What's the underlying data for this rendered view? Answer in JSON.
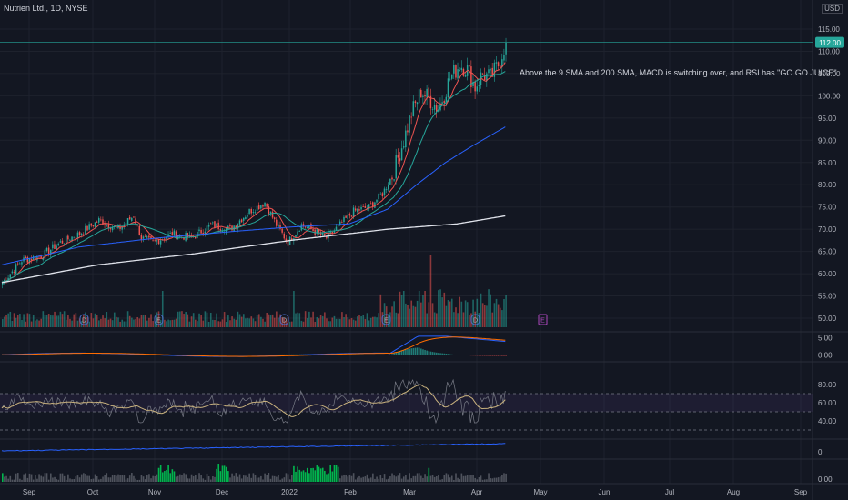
{
  "header": {
    "title": "Nutrien Ltd., 1D, NYSE",
    "currency": "USD",
    "top_label": "1"
  },
  "annotation": "Above the 9 SMA and 200 SMA, MACD is switching over, and RSI has \"GO GO JUICE\"",
  "colors": {
    "bg": "#131722",
    "grid": "#1e222d",
    "up": "#26a69a",
    "down": "#ef5350",
    "sma9": "#ef5350",
    "sma20": "#26a69a",
    "sma50": "#2962ff",
    "sma200": "#e0e3eb",
    "rsi": "#787b86",
    "rsi_ma": "#c9b27e",
    "text": "#d1d4dc",
    "price_line": "#26a69a"
  },
  "chart_data": {
    "type": "candlestick",
    "instrument": "Nutrien Ltd., 1D, NYSE",
    "price_axis": {
      "ticks": [
        50,
        55,
        60,
        65,
        70,
        75,
        80,
        85,
        90,
        95,
        100,
        105,
        110,
        115
      ],
      "tick_labels": [
        "50.00",
        "55.00",
        "60.00",
        "65.00",
        "70.00",
        "75.00",
        "80.00",
        "85.00",
        "90.00",
        "95.00",
        "100.00",
        "105.00",
        "110.00",
        "115.00"
      ]
    },
    "last_price": "112.00",
    "x_labels": [
      "Sep",
      "Oct",
      "Nov",
      "Dec",
      "2022",
      "Feb",
      "Mar",
      "Apr",
      "May",
      "Jun",
      "Jul",
      "Aug",
      "Sep"
    ],
    "close_anchors": [
      [
        0,
        58
      ],
      [
        10,
        63
      ],
      [
        20,
        64
      ],
      [
        30,
        67
      ],
      [
        40,
        69
      ],
      [
        50,
        72
      ],
      [
        60,
        70
      ],
      [
        68,
        73
      ],
      [
        72,
        68
      ],
      [
        78,
        67
      ],
      [
        88,
        69
      ],
      [
        98,
        68
      ],
      [
        108,
        71
      ],
      [
        118,
        70
      ],
      [
        128,
        74
      ],
      [
        136,
        76
      ],
      [
        142,
        71
      ],
      [
        148,
        67
      ],
      [
        155,
        71
      ],
      [
        160,
        70
      ],
      [
        168,
        68
      ],
      [
        175,
        71
      ],
      [
        182,
        74
      ],
      [
        190,
        75
      ],
      [
        197,
        78
      ],
      [
        202,
        82
      ],
      [
        208,
        90
      ],
      [
        212,
        96
      ],
      [
        217,
        101
      ],
      [
        222,
        99
      ],
      [
        226,
        97
      ],
      [
        232,
        104
      ],
      [
        237,
        107
      ],
      [
        241,
        106
      ],
      [
        245,
        102
      ],
      [
        249,
        105
      ],
      [
        253,
        104
      ],
      [
        257,
        107
      ],
      [
        261,
        112
      ]
    ],
    "sma200_anchors": [
      [
        0,
        58
      ],
      [
        50,
        62
      ],
      [
        100,
        64.5
      ],
      [
        150,
        67.5
      ],
      [
        200,
        70
      ],
      [
        236,
        71.2
      ],
      [
        261,
        73
      ]
    ],
    "sma50_anchors": [
      [
        0,
        62
      ],
      [
        40,
        66
      ],
      [
        80,
        68
      ],
      [
        120,
        69.5
      ],
      [
        150,
        70.5
      ],
      [
        180,
        71.2
      ],
      [
        200,
        74.5
      ],
      [
        215,
        80
      ],
      [
        230,
        85
      ],
      [
        245,
        89
      ],
      [
        261,
        93
      ]
    ],
    "volume_markers": [
      "D",
      "E",
      "D",
      "E",
      "D",
      "E"
    ],
    "macd": {
      "ticks": [
        0,
        5
      ],
      "tick_labels": [
        "0.00",
        "5.00"
      ]
    },
    "rsi": {
      "ticks": [
        40,
        60,
        80
      ],
      "tick_labels": [
        "40.00",
        "60.00",
        "80.00"
      ],
      "bands": [
        70,
        50
      ]
    },
    "indicator4": {
      "ticks": [
        0
      ],
      "tick_labels": [
        "0"
      ]
    },
    "indicator5": {
      "ticks": [
        0
      ],
      "tick_labels": [
        "0.00"
      ]
    }
  }
}
